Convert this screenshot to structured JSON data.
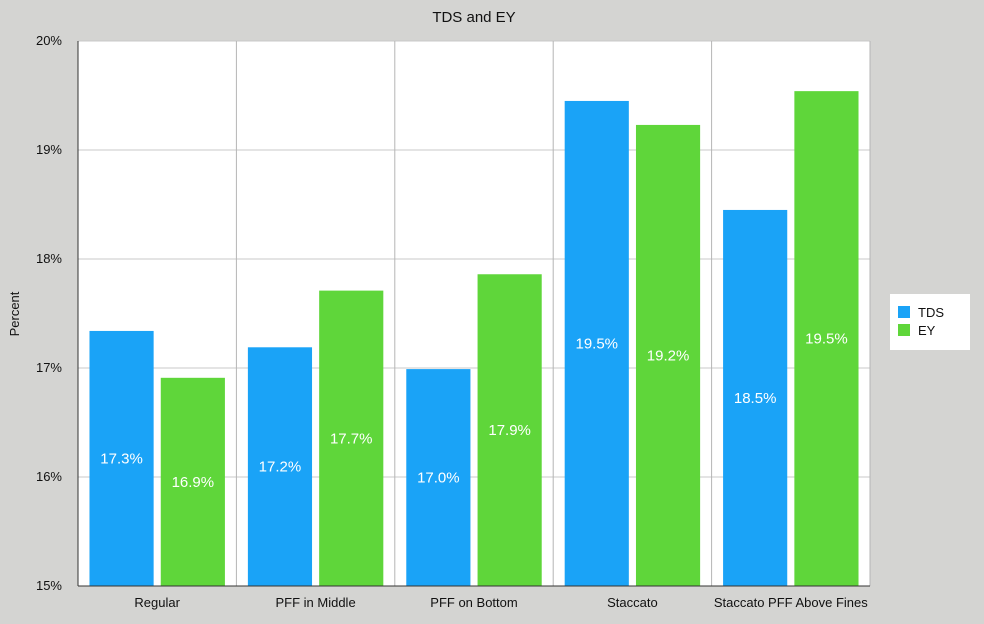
{
  "chart_data": {
    "type": "bar",
    "title": "TDS and EY",
    "xlabel": "",
    "ylabel": "Percent",
    "ylim": [
      15,
      20
    ],
    "yticks": [
      15,
      16,
      17,
      18,
      19,
      20
    ],
    "ytick_labels": [
      "15%",
      "16%",
      "17%",
      "18%",
      "19%",
      "20%"
    ],
    "categories": [
      "Regular",
      "PFF in Middle",
      "PFF on Bottom",
      "Staccato",
      "Staccato PFF Above Fines"
    ],
    "series": [
      {
        "name": "TDS",
        "color": "#1aa3f7",
        "values": [
          17.34,
          17.19,
          16.99,
          19.45,
          18.45
        ],
        "labels": [
          "17.3%",
          "17.2%",
          "17.0%",
          "19.5%",
          "18.5%"
        ]
      },
      {
        "name": "EY",
        "color": "#5fd63a",
        "values": [
          16.91,
          17.71,
          17.86,
          19.23,
          19.54
        ],
        "labels": [
          "16.9%",
          "17.7%",
          "17.9%",
          "19.2%",
          "19.5%"
        ]
      }
    ],
    "grid": true,
    "legend": "right"
  }
}
